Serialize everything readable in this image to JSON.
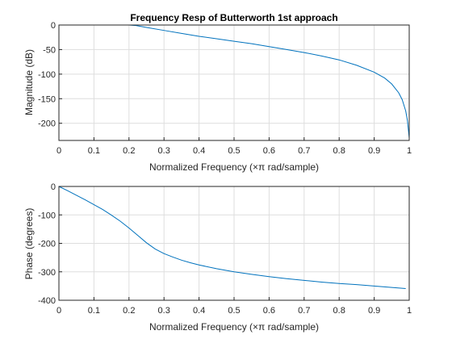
{
  "chart_data": [
    {
      "type": "line",
      "title": "Frequency Resp of Butterworth 1st approach",
      "xlabel": "Normalized Frequency  (×π rad/sample)",
      "ylabel": "Magnitude (dB)",
      "xlim": [
        0,
        1
      ],
      "ylim": [
        -235,
        0
      ],
      "xticks": [
        "0",
        "0.1",
        "0.2",
        "0.3",
        "0.4",
        "0.5",
        "0.6",
        "0.7",
        "0.8",
        "0.9",
        "1"
      ],
      "yticks": [
        "-200",
        "-150",
        "-100",
        "-50",
        "0"
      ],
      "grid": true,
      "color": "#0072bd",
      "x": [
        0,
        0.05,
        0.1,
        0.15,
        0.2,
        0.22,
        0.25,
        0.3,
        0.35,
        0.4,
        0.45,
        0.5,
        0.55,
        0.6,
        0.65,
        0.7,
        0.75,
        0.8,
        0.85,
        0.9,
        0.93,
        0.95,
        0.97,
        0.98,
        0.99,
        0.995,
        1.0
      ],
      "values": [
        0,
        0,
        0,
        0,
        0,
        -1,
        -5,
        -11,
        -17,
        -23,
        -28,
        -33,
        -38,
        -44,
        -50,
        -56,
        -63,
        -71,
        -82,
        -96,
        -108,
        -120,
        -138,
        -152,
        -175,
        -195,
        -230
      ]
    },
    {
      "type": "line",
      "title": "",
      "xlabel": "Normalized Frequency  (×π rad/sample)",
      "ylabel": "Phase (degrees)",
      "xlim": [
        0,
        1
      ],
      "ylim": [
        -400,
        0
      ],
      "xticks": [
        "0",
        "0.1",
        "0.2",
        "0.3",
        "0.4",
        "0.5",
        "0.6",
        "0.7",
        "0.8",
        "0.9",
        "1"
      ],
      "yticks": [
        "-400",
        "-300",
        "-200",
        "-100",
        "0"
      ],
      "grid": true,
      "color": "#0072bd",
      "x": [
        0,
        0.025,
        0.05,
        0.075,
        0.1,
        0.125,
        0.15,
        0.175,
        0.2,
        0.225,
        0.25,
        0.275,
        0.3,
        0.325,
        0.35,
        0.375,
        0.4,
        0.45,
        0.5,
        0.55,
        0.6,
        0.65,
        0.7,
        0.75,
        0.8,
        0.85,
        0.9,
        0.95,
        0.99
      ],
      "values": [
        0,
        -15,
        -31,
        -47,
        -64,
        -81,
        -101,
        -122,
        -146,
        -172,
        -198,
        -220,
        -236,
        -248,
        -259,
        -268,
        -276,
        -289,
        -300,
        -309,
        -317,
        -324,
        -330,
        -336,
        -341,
        -345,
        -350,
        -355,
        -359
      ]
    }
  ]
}
